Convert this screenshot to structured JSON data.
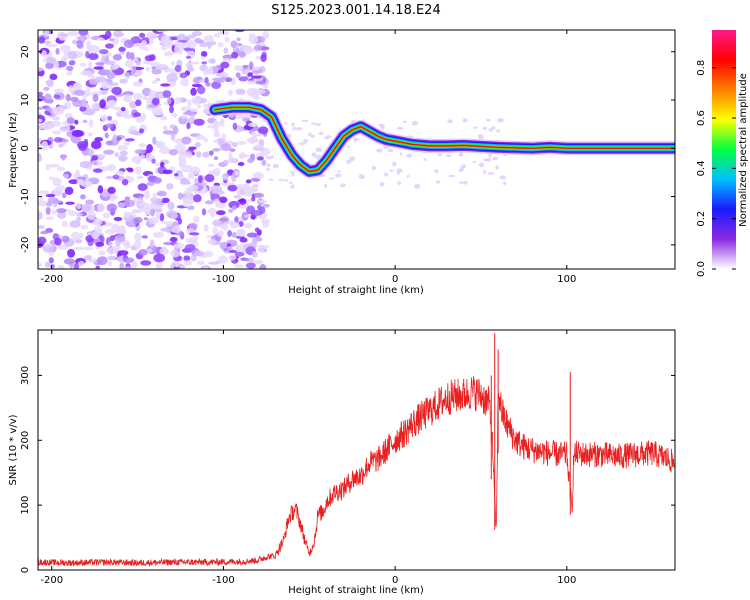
{
  "title": "S125.2023.001.14.18.E24",
  "chart_data": [
    {
      "type": "heatmap",
      "panel": "spectrogram",
      "xlabel": "Height of straight line (km)",
      "ylabel": "Frequency (Hz)",
      "xlim": [
        -208,
        163
      ],
      "ylim": [
        -25,
        24.5
      ],
      "x_ticks": [
        -200,
        -100,
        0,
        100
      ],
      "x_tick_labels": [
        "-200",
        "-100",
        "0",
        "100"
      ],
      "y_ticks": [
        -20,
        -10,
        0,
        10,
        20
      ],
      "y_tick_labels": [
        "-20",
        "-10",
        "0",
        "10",
        "20"
      ],
      "grid": false,
      "noise_region_km": [
        -208,
        -75
      ],
      "ridge": {
        "x": [
          -105,
          -95,
          -85,
          -78,
          -72,
          -66,
          -60,
          -55,
          -50,
          -45,
          -40,
          -35,
          -30,
          -25,
          -20,
          -15,
          -10,
          -5,
          0,
          10,
          20,
          30,
          40,
          50,
          60,
          70,
          80,
          90,
          100,
          110,
          120,
          130,
          140,
          150,
          163
        ],
        "y": [
          8,
          8.5,
          8.5,
          8,
          6.5,
          2,
          -1.5,
          -3.5,
          -4.8,
          -4.5,
          -2.5,
          0,
          2.5,
          3.8,
          4.5,
          3.5,
          2.5,
          1.8,
          1.5,
          0.8,
          0.5,
          0.5,
          0.6,
          0.4,
          0.2,
          0.1,
          0,
          0.2,
          0,
          0,
          0,
          0,
          0,
          0,
          0
        ]
      },
      "colorbar": {
        "label": "Normalized spectral amplitude",
        "ticks": [
          0.0,
          0.2,
          0.4,
          0.6,
          0.8
        ],
        "tick_labels": [
          "0.0",
          "0.2",
          "0.4",
          "0.6",
          "0.8"
        ],
        "range": [
          0,
          0.95
        ],
        "colors": [
          "#ffffff",
          "#8a2be2",
          "#1a1aff",
          "#00c0ff",
          "#00ff40",
          "#ffff00",
          "#ff8000",
          "#ff0000",
          "#ff1a8c"
        ]
      }
    },
    {
      "type": "line",
      "panel": "snr",
      "xlabel": "Height of straight line (km)",
      "ylabel": "SNR (10 * v/v)",
      "xlim": [
        -208,
        163
      ],
      "ylim": [
        0,
        370
      ],
      "x_ticks": [
        -200,
        -100,
        0,
        100
      ],
      "x_tick_labels": [
        "-200",
        "-100",
        "0",
        "100"
      ],
      "y_ticks": [
        0,
        100,
        200,
        300
      ],
      "y_tick_labels": [
        "0",
        "100",
        "200",
        "300"
      ],
      "grid": false,
      "color": "#e82020",
      "series": [
        {
          "x": [
            -208,
            -190,
            -170,
            -150,
            -130,
            -110,
            -90,
            -80,
            -75,
            -70,
            -65,
            -62,
            -58,
            -55,
            -52,
            -50,
            -47,
            -45,
            -42,
            -40,
            -35,
            -30,
            -25,
            -20,
            -15,
            -10,
            -5,
            0,
            5,
            10,
            15,
            20,
            25,
            30,
            35,
            40,
            45,
            50,
            55,
            57,
            58,
            59,
            60,
            62,
            65,
            70,
            75,
            80,
            90,
            95,
            100,
            102,
            103,
            104,
            106,
            110,
            120,
            130,
            140,
            150,
            160,
            163
          ],
          "y": [
            12,
            11,
            12,
            11,
            12,
            12,
            13,
            15,
            20,
            22,
            45,
            80,
            95,
            70,
            40,
            25,
            45,
            85,
            90,
            105,
            120,
            125,
            140,
            145,
            165,
            170,
            185,
            200,
            210,
            225,
            235,
            245,
            255,
            265,
            268,
            270,
            275,
            270,
            255,
            180,
            100,
            60,
            280,
            245,
            225,
            200,
            190,
            185,
            180,
            178,
            178,
            120,
            90,
            175,
            180,
            178,
            178,
            175,
            178,
            180,
            170,
            162
          ]
        }
      ],
      "spikes": [
        {
          "x": 56,
          "y_min": 140,
          "y_max": 300
        },
        {
          "x": 58,
          "y_min": 62,
          "y_max": 365
        },
        {
          "x": 60,
          "y_min": 180,
          "y_max": 340
        },
        {
          "x": 102,
          "y_min": 85,
          "y_max": 305
        }
      ]
    }
  ]
}
